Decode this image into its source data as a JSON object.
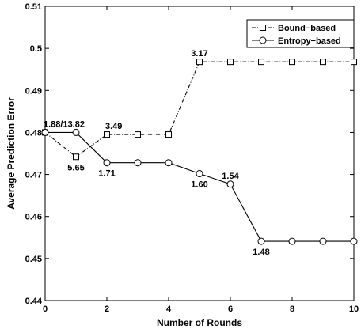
{
  "chart_data": {
    "type": "line",
    "title": "",
    "xlabel": "Number of Rounds",
    "ylabel": "Average Prediction Error",
    "xlim": [
      0,
      10
    ],
    "ylim": [
      0.44,
      0.51
    ],
    "x_ticks": [
      "0",
      "2",
      "4",
      "6",
      "8",
      "10"
    ],
    "y_ticks": [
      "0.44",
      "0.45",
      "0.46",
      "0.47",
      "0.48",
      "0.49",
      "0.5",
      "0.51"
    ],
    "legend_placement": "top-right",
    "grid": false,
    "series": [
      {
        "name": "Bound−based",
        "marker": "square",
        "line_style": "dash-dot",
        "x": [
          0,
          1,
          2,
          3,
          4,
          5,
          6,
          7,
          8,
          9,
          10
        ],
        "y": [
          0.48,
          0.4742,
          0.4795,
          0.4795,
          0.4795,
          0.4968,
          0.4968,
          0.4968,
          0.4968,
          0.4968,
          0.4968
        ]
      },
      {
        "name": "Entropy−based",
        "marker": "circle",
        "line_style": "solid",
        "x": [
          0,
          1,
          2,
          3,
          4,
          5,
          6,
          7,
          8,
          9,
          10
        ],
        "y": [
          0.48,
          0.48,
          0.4728,
          0.4728,
          0.4728,
          0.4702,
          0.4677,
          0.4541,
          0.4541,
          0.4541,
          0.4541
        ]
      }
    ],
    "annotations": [
      {
        "text": "1.88/13.82",
        "x": 0,
        "y": 0.48,
        "position": "above-right"
      },
      {
        "text": "5.65",
        "x": 1,
        "y": 0.4742,
        "position": "below"
      },
      {
        "text": "3.49",
        "x": 2,
        "y": 0.4795,
        "position": "above-right"
      },
      {
        "text": "3.17",
        "x": 5,
        "y": 0.4968,
        "position": "above"
      },
      {
        "text": "1.71",
        "x": 2,
        "y": 0.4728,
        "position": "below"
      },
      {
        "text": "1.60",
        "x": 5,
        "y": 0.4702,
        "position": "below"
      },
      {
        "text": "1.54",
        "x": 6,
        "y": 0.4677,
        "position": "above"
      },
      {
        "text": "1.48",
        "x": 7,
        "y": 0.4541,
        "position": "below"
      }
    ]
  }
}
